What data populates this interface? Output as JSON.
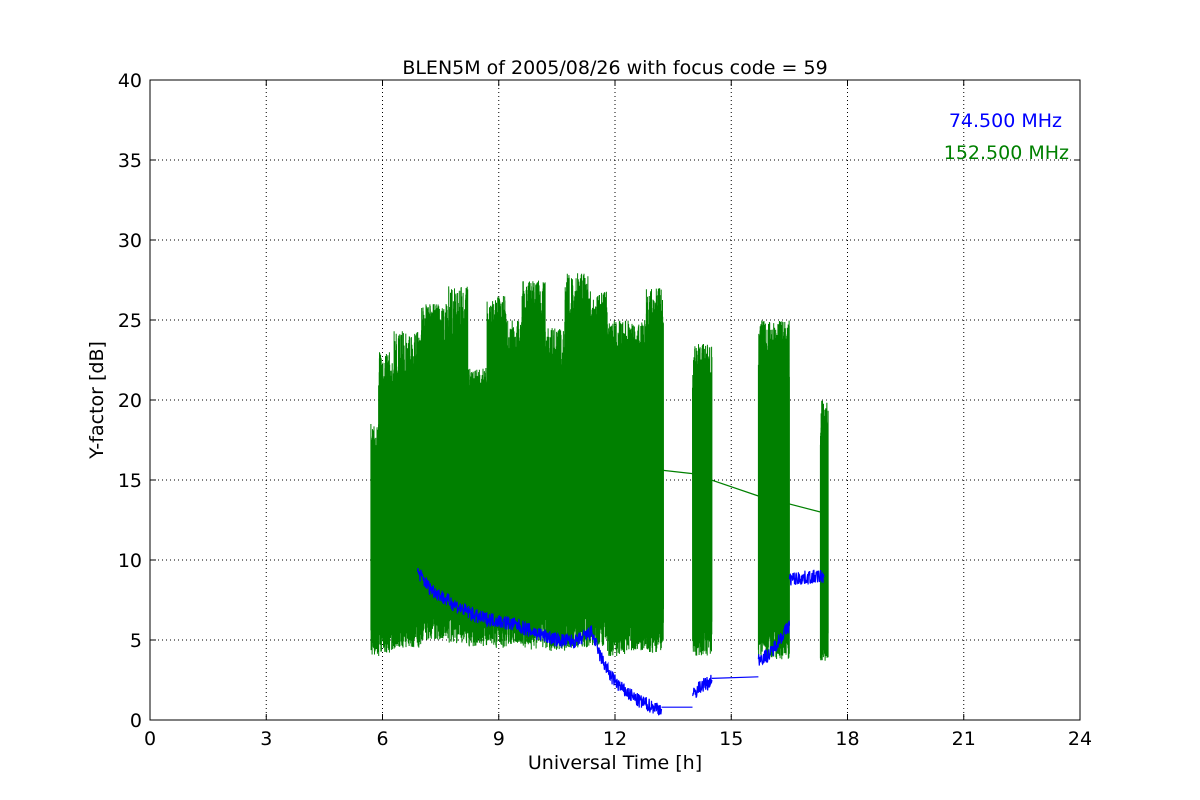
{
  "chart_data": {
    "type": "line",
    "title": "BLEN5M of 2005/08/26 with focus code = 59",
    "xlabel": "Universal Time [h]",
    "ylabel": "Y-factor [dB]",
    "xlim": [
      0,
      24
    ],
    "ylim": [
      0,
      40
    ],
    "xticks": [
      0,
      3,
      6,
      9,
      12,
      15,
      18,
      21,
      24
    ],
    "yticks": [
      0,
      5,
      10,
      15,
      20,
      25,
      30,
      35,
      40
    ],
    "grid": true,
    "legend_placement": "top-right",
    "series": [
      {
        "name": "74.500 MHz",
        "color": "#0000ff",
        "segments": [
          [
            [
              6.9,
              9.3
            ],
            [
              7.2,
              8.3
            ],
            [
              7.6,
              7.6
            ],
            [
              8.0,
              7.0
            ],
            [
              8.5,
              6.4
            ],
            [
              9.0,
              6.2
            ],
            [
              9.5,
              5.9
            ],
            [
              10.0,
              5.4
            ],
            [
              10.5,
              5.0
            ],
            [
              11.0,
              4.9
            ],
            [
              11.4,
              5.5
            ],
            [
              11.6,
              4.1
            ],
            [
              11.9,
              2.7
            ],
            [
              12.2,
              1.9
            ],
            [
              12.6,
              1.2
            ],
            [
              13.0,
              0.8
            ],
            [
              13.2,
              0.7
            ]
          ],
          [
            [
              13.2,
              0.8
            ],
            [
              14.0,
              0.8
            ]
          ],
          [
            [
              14.0,
              1.5
            ],
            [
              14.2,
              2.1
            ],
            [
              14.4,
              2.3
            ],
            [
              14.5,
              2.5
            ]
          ],
          [
            [
              14.5,
              2.6
            ],
            [
              15.7,
              2.7
            ]
          ],
          [
            [
              15.7,
              3.8
            ],
            [
              16.0,
              4.1
            ],
            [
              16.2,
              4.9
            ],
            [
              16.5,
              5.9
            ]
          ],
          [
            [
              16.5,
              8.8
            ],
            [
              17.4,
              9.0
            ]
          ]
        ]
      },
      {
        "name": "152.500 MHz",
        "color": "#008000",
        "bursts": [
          [
            5.7,
            5.9,
            4.0,
            18.5
          ],
          [
            5.9,
            6.3,
            4.2,
            23.0
          ],
          [
            6.3,
            7.0,
            4.5,
            24.3
          ],
          [
            7.0,
            7.7,
            5.0,
            26.0
          ],
          [
            7.7,
            8.2,
            4.8,
            27.1
          ],
          [
            8.2,
            8.7,
            4.6,
            22.0
          ],
          [
            8.7,
            9.2,
            4.5,
            26.5
          ],
          [
            9.2,
            9.6,
            4.7,
            25.0
          ],
          [
            9.6,
            10.2,
            4.4,
            27.5
          ],
          [
            10.2,
            10.7,
            4.3,
            24.5
          ],
          [
            10.7,
            11.3,
            4.5,
            28.0
          ],
          [
            11.3,
            11.8,
            4.6,
            26.8
          ],
          [
            11.8,
            12.3,
            4.0,
            25.0
          ],
          [
            12.3,
            12.8,
            4.3,
            25.0
          ],
          [
            12.8,
            13.25,
            4.2,
            27.0
          ],
          [
            14.0,
            14.5,
            4.0,
            23.5
          ],
          [
            15.7,
            16.5,
            3.8,
            25.0
          ],
          [
            17.3,
            17.5,
            3.7,
            20.0
          ]
        ],
        "segments": [
          [
            [
              13.25,
              15.6
            ],
            [
              14.0,
              15.4
            ],
            [
              15.7,
              14.0
            ],
            [
              17.3,
              13.0
            ]
          ]
        ]
      }
    ]
  }
}
